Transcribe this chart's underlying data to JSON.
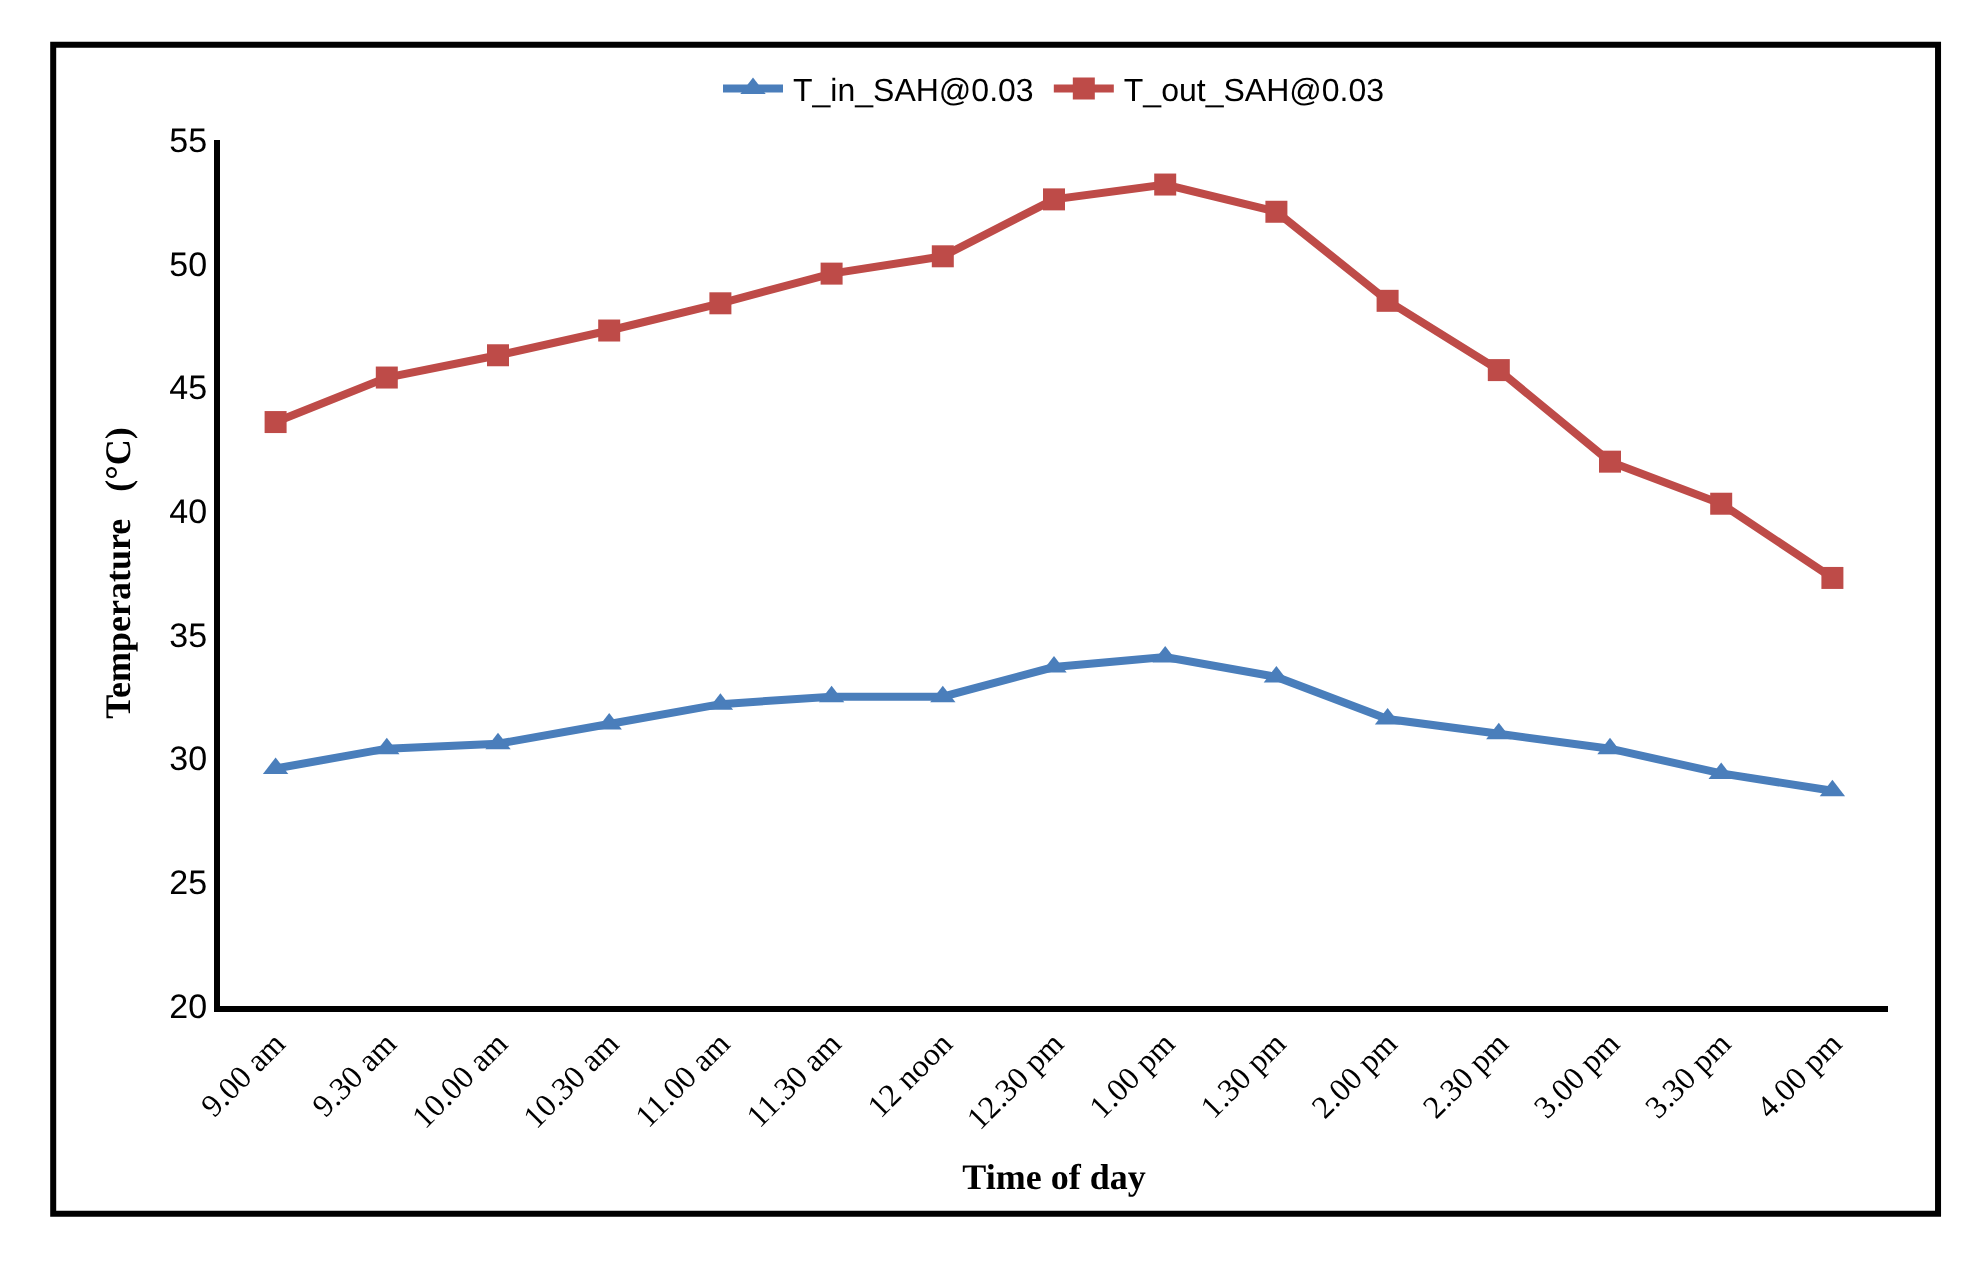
{
  "chart_data": {
    "type": "line",
    "xlabel": "Time of day",
    "ylabel": "Temperature   (°C)",
    "categories": [
      "9.00 am",
      "9.30 am",
      "10.00 am",
      "10.30 am",
      "11.00 am",
      "11.30 am",
      "12 noon",
      "12.30 pm",
      "1.00 pm",
      "1.30 pm",
      "2.00 pm",
      "2.30 pm",
      "3.00 pm",
      "3.30 pm",
      "4.00 pm"
    ],
    "series": [
      {
        "name": "T_in_SAH@0.03",
        "color": "#4a7ebb",
        "marker": "triangle",
        "values": [
          29.6,
          30.4,
          30.6,
          31.4,
          32.2,
          32.5,
          32.5,
          33.7,
          34.1,
          33.3,
          31.6,
          31.0,
          30.4,
          29.4,
          28.7
        ]
      },
      {
        "name": "T_out_SAH@0.03",
        "color": "#be4b48",
        "marker": "square",
        "values": [
          43.6,
          45.4,
          46.3,
          47.3,
          48.4,
          49.6,
          50.3,
          52.6,
          53.2,
          52.1,
          48.5,
          45.7,
          42.0,
          40.3,
          37.3
        ]
      }
    ],
    "ylim": [
      20,
      55
    ],
    "yticks": [
      20,
      25,
      30,
      35,
      40,
      45,
      50,
      55
    ],
    "legend": "top",
    "line_style": "solid"
  }
}
